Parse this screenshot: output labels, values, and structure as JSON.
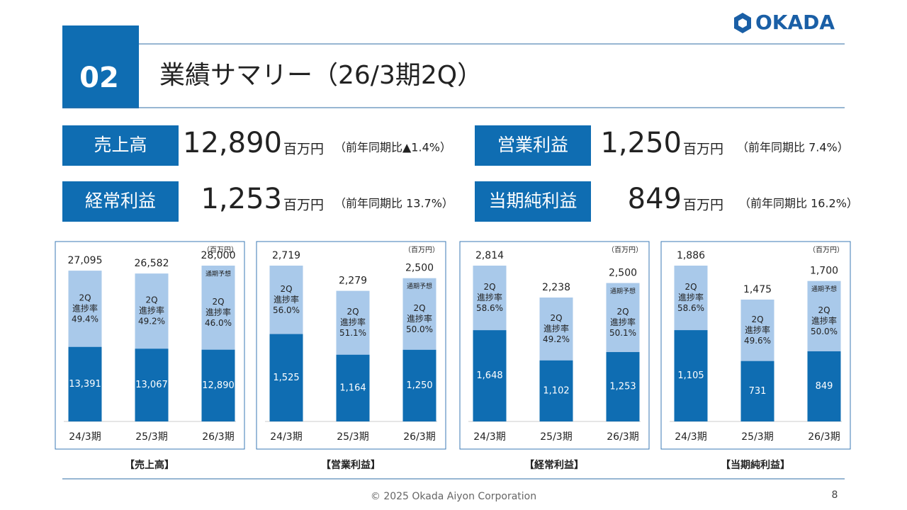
{
  "header": {
    "logo": "OKADA",
    "section": "02",
    "title": "業績サマリー（26/3期2Q）"
  },
  "kpis": [
    {
      "label": "売上高",
      "value": "12,890",
      "unit": "百万円",
      "note": "（前年同期比▲1.4%）"
    },
    {
      "label": "営業利益",
      "value": "1,250",
      "unit": "百万円",
      "note": "（前年同期比 7.4%）"
    },
    {
      "label": "経常利益",
      "value": "1,253",
      "unit": "百万円",
      "note": "（前年同期比 13.7%）"
    },
    {
      "label": "当期純利益",
      "value": "849",
      "unit": "百万円",
      "note": "（前年同期比 16.2%）"
    }
  ],
  "chart_data": [
    {
      "type": "bar",
      "unit": "（百万円）",
      "caption": "【売上高】",
      "categories": [
        "24/3期",
        "25/3期",
        "26/3期"
      ],
      "series": [
        {
          "color": "#a9c9ea",
          "values": [
            27095,
            26582,
            28000
          ],
          "value_labels": [
            "27,095",
            "26,582",
            "28,000"
          ]
        },
        {
          "color": "#0f6db2",
          "values": [
            13391,
            13067,
            12890
          ],
          "value_labels": [
            "13,391",
            "13,067",
            "12,890"
          ]
        }
      ],
      "progress_heading": [
        "2Q",
        "進捗率"
      ],
      "progress_labels": [
        "49.4%",
        "49.2%",
        "46.0%"
      ],
      "forecast_label": "通期予想"
    },
    {
      "type": "bar",
      "unit": "（百万円）",
      "caption": "【営業利益】",
      "categories": [
        "24/3期",
        "25/3期",
        "26/3期"
      ],
      "series": [
        {
          "color": "#a9c9ea",
          "values": [
            2719,
            2279,
            2500
          ],
          "value_labels": [
            "2,719",
            "2,279",
            "2,500"
          ]
        },
        {
          "color": "#0f6db2",
          "values": [
            1525,
            1164,
            1250
          ],
          "value_labels": [
            "1,525",
            "1,164",
            "1,250"
          ]
        }
      ],
      "progress_heading": [
        "2Q",
        "進捗率"
      ],
      "progress_labels": [
        "56.0%",
        "51.1%",
        "50.0%"
      ],
      "forecast_label": "通期予想"
    },
    {
      "type": "bar",
      "unit": "（百万円）",
      "caption": "【経常利益】",
      "categories": [
        "24/3期",
        "25/3期",
        "26/3期"
      ],
      "series": [
        {
          "color": "#a9c9ea",
          "values": [
            2814,
            2238,
            2500
          ],
          "value_labels": [
            "2,814",
            "2,238",
            "2,500"
          ]
        },
        {
          "color": "#0f6db2",
          "values": [
            1648,
            1102,
            1253
          ],
          "value_labels": [
            "1,648",
            "1,102",
            "1,253"
          ]
        }
      ],
      "progress_heading": [
        "2Q",
        "進捗率"
      ],
      "progress_labels": [
        "58.6%",
        "49.2%",
        "50.1%"
      ],
      "forecast_label": "通期予想"
    },
    {
      "type": "bar",
      "unit": "（百万円）",
      "caption": "【当期純利益】",
      "categories": [
        "24/3期",
        "25/3期",
        "26/3期"
      ],
      "series": [
        {
          "color": "#a9c9ea",
          "values": [
            1886,
            1475,
            1700
          ],
          "value_labels": [
            "1,886",
            "1,475",
            "1,700"
          ]
        },
        {
          "color": "#0f6db2",
          "values": [
            1105,
            731,
            849
          ],
          "value_labels": [
            "1,105",
            "731",
            "849"
          ]
        }
      ],
      "progress_heading": [
        "2Q",
        "進捗率"
      ],
      "progress_labels": [
        "58.6%",
        "49.6%",
        "50.0%"
      ],
      "forecast_label": "通期予想"
    }
  ],
  "footer": {
    "copyright": "© 2025 Okada Aiyon Corporation",
    "page": "8"
  }
}
